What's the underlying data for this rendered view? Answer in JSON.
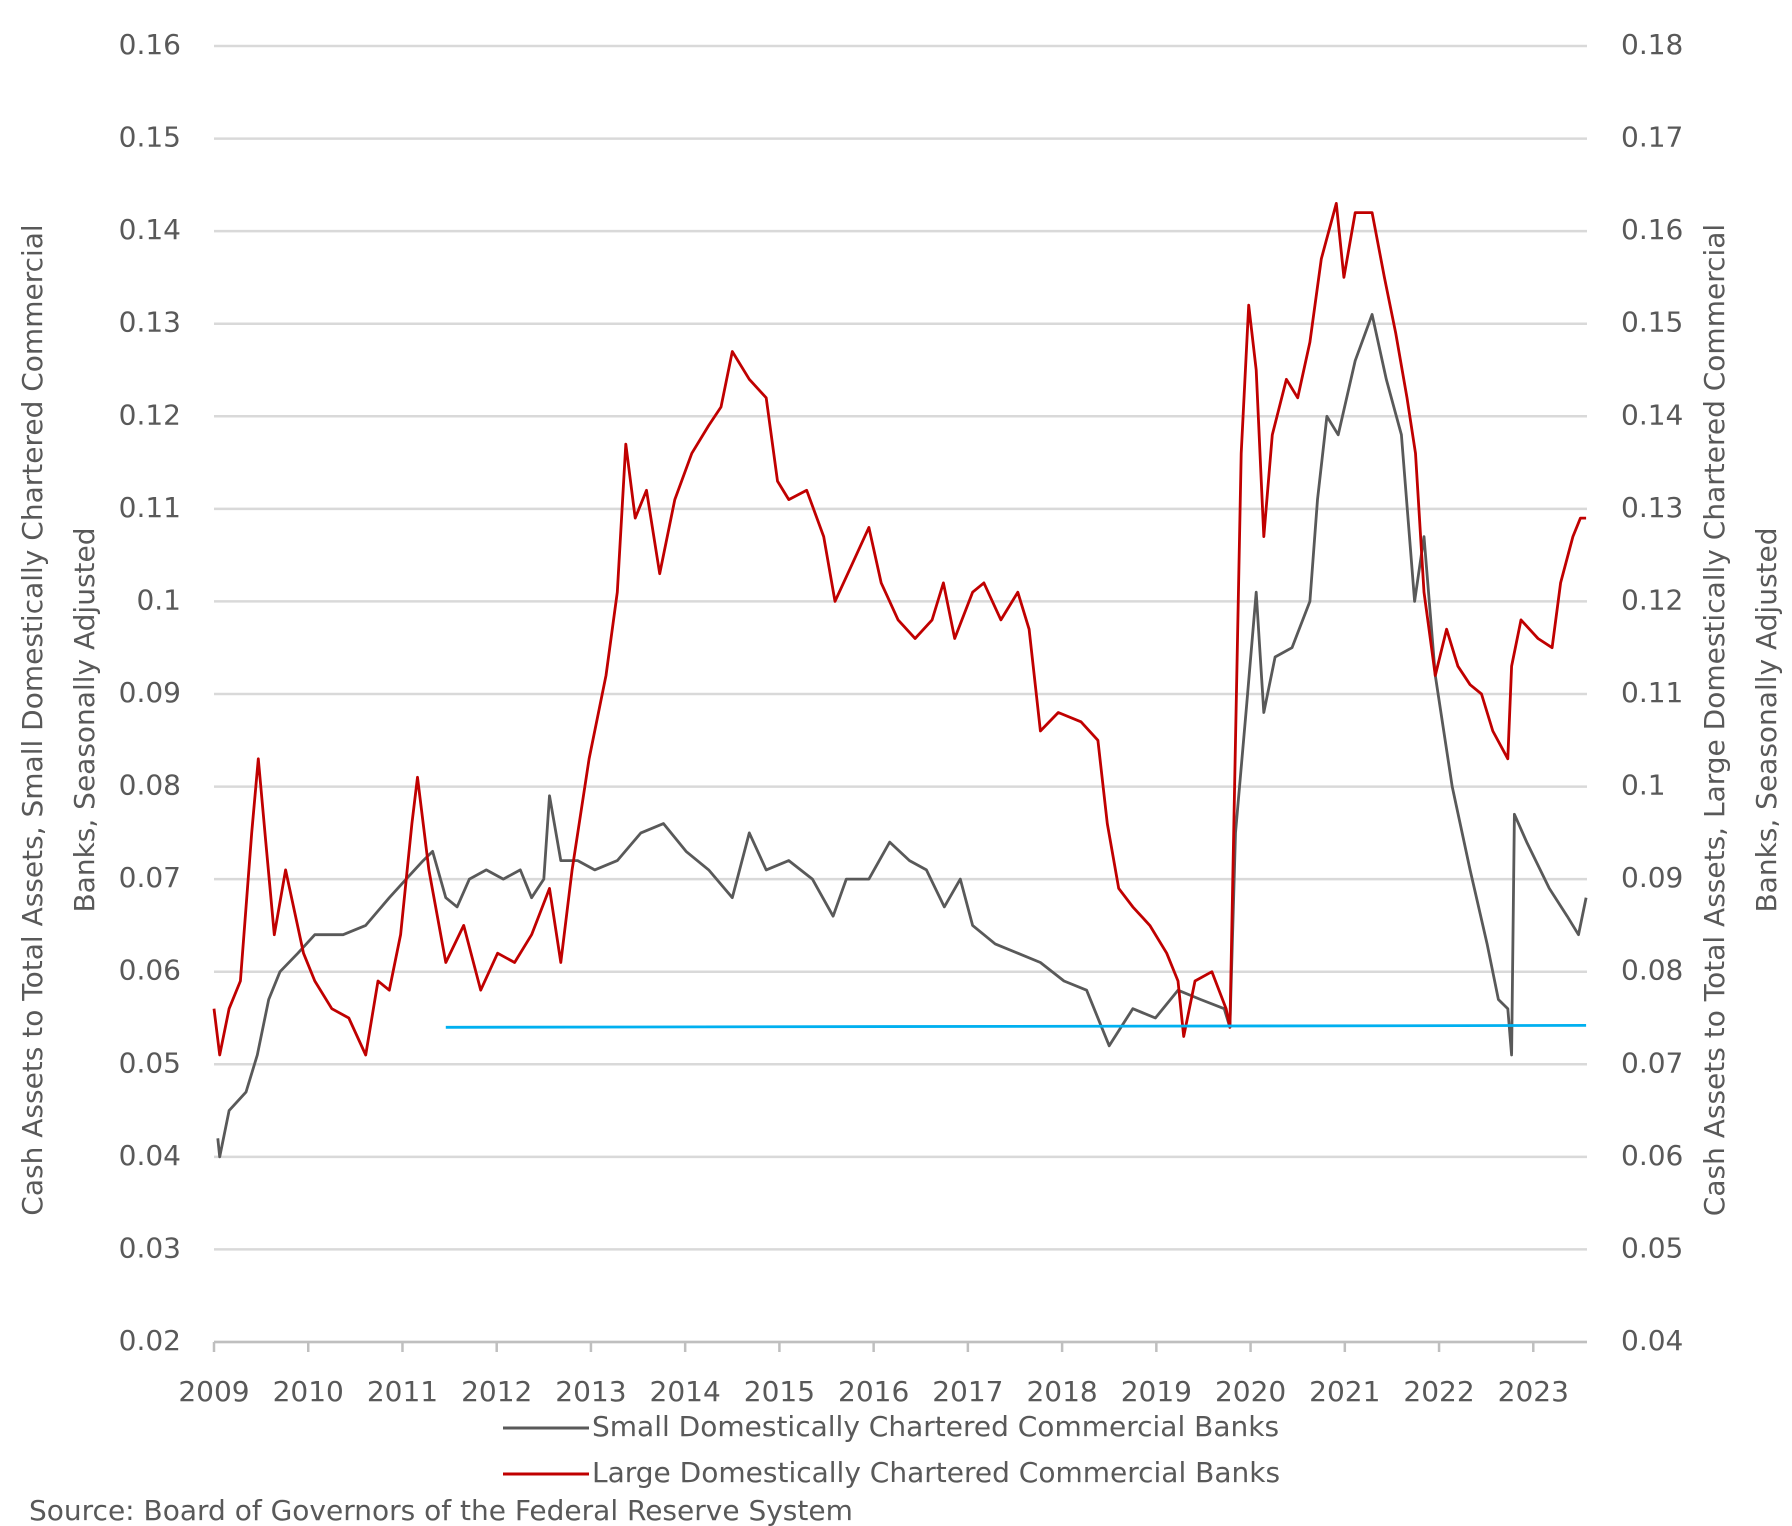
{
  "chart_data": {
    "type": "line",
    "y_label": [
      "Cash Assets to Total Assets, Small Domestically Chartered Commercial",
      "Banks, Seasonally Adjusted"
    ],
    "y2_label": [
      "Cash Assets to Total Assets, Large Domestically Chartered Commercial",
      "Banks, Seasonally Adjusted"
    ],
    "source": "Source: Board of Governors of the Federal Reserve System",
    "xlim": [
      2009,
      2023.57
    ],
    "xticks": [
      2009,
      2010,
      2011,
      2012,
      2013,
      2014,
      2015,
      2016,
      2017,
      2018,
      2019,
      2020,
      2021,
      2022,
      2023
    ],
    "ylim": [
      0.02,
      0.16
    ],
    "yticks": [
      0.02,
      0.03,
      0.04,
      0.05,
      0.06,
      0.07,
      0.08,
      0.09,
      0.1,
      0.11,
      0.12,
      0.13,
      0.14,
      0.15,
      0.16
    ],
    "y2lim": [
      0.04,
      0.18
    ],
    "y2ticks": [
      0.04,
      0.05,
      0.06,
      0.07,
      0.08,
      0.09,
      0.1,
      0.11,
      0.12,
      0.13,
      0.14,
      0.15,
      0.16,
      0.17,
      0.18
    ],
    "grid": true,
    "legend": "bottom",
    "series": [
      {
        "name": "Small Domestically Chartered Commercial Banks",
        "color": "#595959",
        "x": [
          2009.04,
          2009.06,
          2009.16,
          2009.34,
          2009.46,
          2009.58,
          2009.7,
          2009.89,
          2010.07,
          2010.37,
          2010.61,
          2010.86,
          2011.04,
          2011.22,
          2011.32,
          2011.46,
          2011.58,
          2011.71,
          2011.89,
          2012.07,
          2012.25,
          2012.37,
          2012.5,
          2012.56,
          2012.68,
          2012.86,
          2013.04,
          2013.28,
          2013.53,
          2013.77,
          2014.01,
          2014.25,
          2014.5,
          2014.68,
          2014.86,
          2015.1,
          2015.35,
          2015.57,
          2015.71,
          2015.95,
          2016.17,
          2016.38,
          2016.56,
          2016.75,
          2016.92,
          2017.05,
          2017.29,
          2017.53,
          2017.77,
          2018.02,
          2018.26,
          2018.5,
          2018.75,
          2018.99,
          2019.23,
          2019.47,
          2019.72,
          2019.78,
          2019.84,
          2019.96,
          2020.06,
          2020.14,
          2020.26,
          2020.44,
          2020.63,
          2020.71,
          2020.81,
          2020.93,
          2021.11,
          2021.29,
          2021.44,
          2021.6,
          2021.74,
          2021.84,
          2021.96,
          2022.14,
          2022.33,
          2022.51,
          2022.63,
          2022.73,
          2022.77,
          2022.8,
          2022.93,
          2023.17,
          2023.36,
          2023.48,
          2023.56
        ],
        "values": [
          0.042,
          0.04,
          0.045,
          0.047,
          0.051,
          0.057,
          0.06,
          0.062,
          0.064,
          0.064,
          0.065,
          0.068,
          0.07,
          0.072,
          0.073,
          0.068,
          0.067,
          0.07,
          0.071,
          0.07,
          0.071,
          0.068,
          0.07,
          0.079,
          0.072,
          0.072,
          0.071,
          0.072,
          0.075,
          0.076,
          0.073,
          0.071,
          0.068,
          0.075,
          0.071,
          0.072,
          0.07,
          0.066,
          0.07,
          0.07,
          0.074,
          0.072,
          0.071,
          0.067,
          0.07,
          0.065,
          0.063,
          0.062,
          0.061,
          0.059,
          0.058,
          0.052,
          0.056,
          0.055,
          0.058,
          0.057,
          0.056,
          0.054,
          0.075,
          0.089,
          0.101,
          0.088,
          0.094,
          0.095,
          0.1,
          0.111,
          0.12,
          0.118,
          0.126,
          0.131,
          0.124,
          0.118,
          0.1,
          0.107,
          0.092,
          0.08,
          0.071,
          0.063,
          0.057,
          0.056,
          0.051,
          0.077,
          0.074,
          0.069,
          0.066,
          0.064,
          0.068
        ]
      },
      {
        "name": "Large Domestically Chartered Commercial Banks",
        "color": "#c00000",
        "axis": "y2",
        "x": [
          2009.0,
          2009.06,
          2009.16,
          2009.28,
          2009.4,
          2009.47,
          2009.55,
          2009.64,
          2009.76,
          2009.95,
          2010.07,
          2010.25,
          2010.43,
          2010.61,
          2010.74,
          2010.86,
          2010.98,
          2011.1,
          2011.16,
          2011.28,
          2011.46,
          2011.65,
          2011.83,
          2012.01,
          2012.19,
          2012.37,
          2012.56,
          2012.68,
          2012.8,
          2012.98,
          2013.16,
          2013.28,
          2013.37,
          2013.47,
          2013.59,
          2013.73,
          2013.89,
          2014.07,
          2014.25,
          2014.38,
          2014.5,
          2014.68,
          2014.86,
          2014.98,
          2015.1,
          2015.29,
          2015.47,
          2015.59,
          2015.77,
          2015.95,
          2016.08,
          2016.26,
          2016.44,
          2016.62,
          2016.74,
          2016.86,
          2017.05,
          2017.17,
          2017.35,
          2017.53,
          2017.65,
          2017.77,
          2017.96,
          2018.2,
          2018.38,
          2018.48,
          2018.6,
          2018.75,
          2018.93,
          2019.11,
          2019.23,
          2019.29,
          2019.41,
          2019.59,
          2019.74,
          2019.78,
          2019.84,
          2019.9,
          2019.98,
          2020.06,
          2020.14,
          2020.23,
          2020.38,
          2020.5,
          2020.63,
          2020.75,
          2020.91,
          2020.99,
          2021.11,
          2021.29,
          2021.42,
          2021.54,
          2021.66,
          2021.75,
          2021.84,
          2021.96,
          2022.08,
          2022.2,
          2022.33,
          2022.45,
          2022.57,
          2022.73,
          2022.77,
          2022.87,
          2023.05,
          2023.2,
          2023.29,
          2023.42,
          2023.5,
          2023.56
        ],
        "values": [
          0.076,
          0.071,
          0.076,
          0.079,
          0.095,
          0.103,
          0.094,
          0.084,
          0.091,
          0.082,
          0.079,
          0.076,
          0.075,
          0.071,
          0.079,
          0.078,
          0.084,
          0.096,
          0.101,
          0.091,
          0.081,
          0.085,
          0.078,
          0.082,
          0.081,
          0.084,
          0.089,
          0.081,
          0.091,
          0.103,
          0.112,
          0.121,
          0.137,
          0.129,
          0.132,
          0.123,
          0.131,
          0.136,
          0.139,
          0.141,
          0.147,
          0.144,
          0.142,
          0.133,
          0.131,
          0.132,
          0.127,
          0.12,
          0.124,
          0.128,
          0.122,
          0.118,
          0.116,
          0.118,
          0.122,
          0.116,
          0.121,
          0.122,
          0.118,
          0.121,
          0.117,
          0.106,
          0.108,
          0.107,
          0.105,
          0.096,
          0.089,
          0.087,
          0.085,
          0.082,
          0.079,
          0.073,
          0.079,
          0.08,
          0.076,
          0.074,
          0.105,
          0.136,
          0.152,
          0.145,
          0.127,
          0.138,
          0.144,
          0.142,
          0.148,
          0.157,
          0.163,
          0.155,
          0.162,
          0.162,
          0.155,
          0.149,
          0.142,
          0.136,
          0.121,
          0.112,
          0.117,
          0.113,
          0.111,
          0.11,
          0.106,
          0.103,
          0.113,
          0.118,
          0.116,
          0.115,
          0.122,
          0.127,
          0.129,
          0.129
        ]
      },
      {
        "color": "#00b0f0",
        "x": [
          2011.46,
          2023.56
        ],
        "values": [
          0.054,
          0.0542
        ]
      }
    ]
  }
}
